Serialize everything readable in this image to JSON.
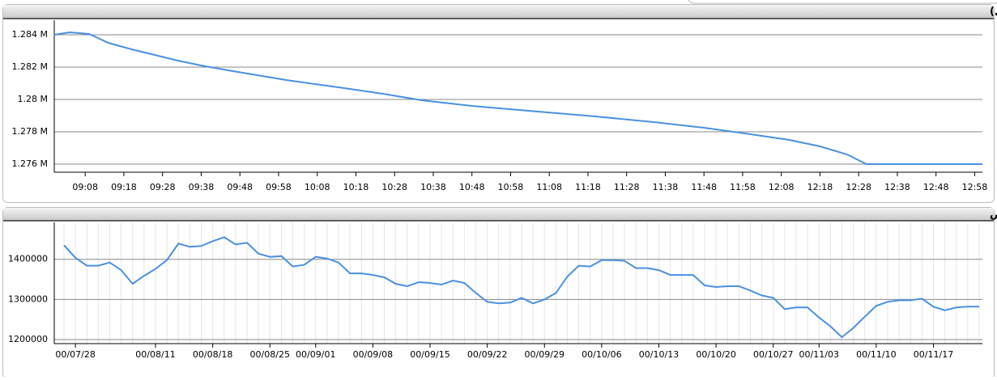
{
  "chart_data": [
    {
      "type": "line",
      "title": "شاخص کل (آخرین روز معاملاتی)",
      "color": "#4a90e2",
      "x": [
        "09:00",
        "09:04",
        "09:09",
        "09:14",
        "09:20",
        "09:26",
        "09:32",
        "09:38",
        "09:45",
        "10:00",
        "10:15",
        "10:25",
        "10:35",
        "10:48",
        "11:05",
        "11:20",
        "11:35",
        "11:48",
        "12:00",
        "12:10",
        "12:18",
        "12:25",
        "12:30",
        "13:00"
      ],
      "values": [
        1284000,
        1284150,
        1284050,
        1283500,
        1283100,
        1282750,
        1282400,
        1282100,
        1281800,
        1281200,
        1280700,
        1280350,
        1279950,
        1279600,
        1279250,
        1278950,
        1278600,
        1278250,
        1277850,
        1277500,
        1277100,
        1276600,
        1276000,
        1276000
      ],
      "xlim": [
        "09:00",
        "13:00"
      ],
      "xticks": [
        "09:08",
        "09:18",
        "09:28",
        "09:38",
        "09:48",
        "09:58",
        "10:08",
        "10:18",
        "10:28",
        "10:38",
        "10:48",
        "10:58",
        "11:08",
        "11:18",
        "11:28",
        "11:38",
        "11:48",
        "11:58",
        "12:08",
        "12:18",
        "12:28",
        "12:38",
        "12:48",
        "12:58"
      ],
      "ylim": [
        1275500,
        1284900
      ],
      "yticks": [
        {
          "value": 1276000,
          "label": "1.276 M"
        },
        {
          "value": 1278000,
          "label": "1.278 M"
        },
        {
          "value": 1280000,
          "label": "1.28 M"
        },
        {
          "value": 1282000,
          "label": "1.282 M"
        },
        {
          "value": 1284000,
          "label": "1.284 M"
        }
      ],
      "grid": true
    },
    {
      "type": "line",
      "title": "نمودار شاخص",
      "color": "#4a90e2",
      "categories": [
        null,
        "00/07/28",
        null,
        null,
        null,
        null,
        null,
        null,
        "00/08/11",
        null,
        null,
        null,
        null,
        "00/08/18",
        null,
        null,
        null,
        null,
        "00/08/25",
        null,
        null,
        null,
        "00/09/01",
        null,
        null,
        null,
        null,
        "00/09/08",
        null,
        null,
        null,
        null,
        "00/09/15",
        null,
        null,
        null,
        null,
        "00/09/22",
        null,
        null,
        null,
        null,
        "00/09/29",
        null,
        null,
        null,
        null,
        "00/10/06",
        null,
        null,
        null,
        null,
        "00/10/13",
        null,
        null,
        null,
        null,
        "00/10/20",
        null,
        null,
        null,
        null,
        "00/10/27",
        null,
        null,
        null,
        "00/11/03",
        null,
        null,
        null,
        null,
        "00/11/10",
        null,
        null,
        null,
        null,
        "00/11/17",
        null,
        null,
        null,
        null
      ],
      "values": [
        1435000,
        1404000,
        1384000,
        1384000,
        1392000,
        1373000,
        1339000,
        1359000,
        1376000,
        1398000,
        1439000,
        1431000,
        1433000,
        1445000,
        1455000,
        1437000,
        1441000,
        1414000,
        1406000,
        1408000,
        1382000,
        1386000,
        1406000,
        1402000,
        1392000,
        1365000,
        1365000,
        1361000,
        1355000,
        1339000,
        1333000,
        1343000,
        1341000,
        1337000,
        1347000,
        1341000,
        1316000,
        1294000,
        1290000,
        1292000,
        1304000,
        1290000,
        1300000,
        1316000,
        1357000,
        1384000,
        1382000,
        1398000,
        1398000,
        1396000,
        1378000,
        1378000,
        1373000,
        1361000,
        1361000,
        1361000,
        1335000,
        1331000,
        1333000,
        1333000,
        1322000,
        1310000,
        1304000,
        1276000,
        1280000,
        1280000,
        1255000,
        1233000,
        1206000,
        1229000,
        1257000,
        1284000,
        1294000,
        1298000,
        1298000,
        1302000,
        1282000,
        1273000,
        1280000,
        1282000,
        1282000
      ],
      "ylim": [
        1190000,
        1492000
      ],
      "yticks": [
        1200000,
        1300000,
        1400000
      ],
      "grid": true
    }
  ]
}
